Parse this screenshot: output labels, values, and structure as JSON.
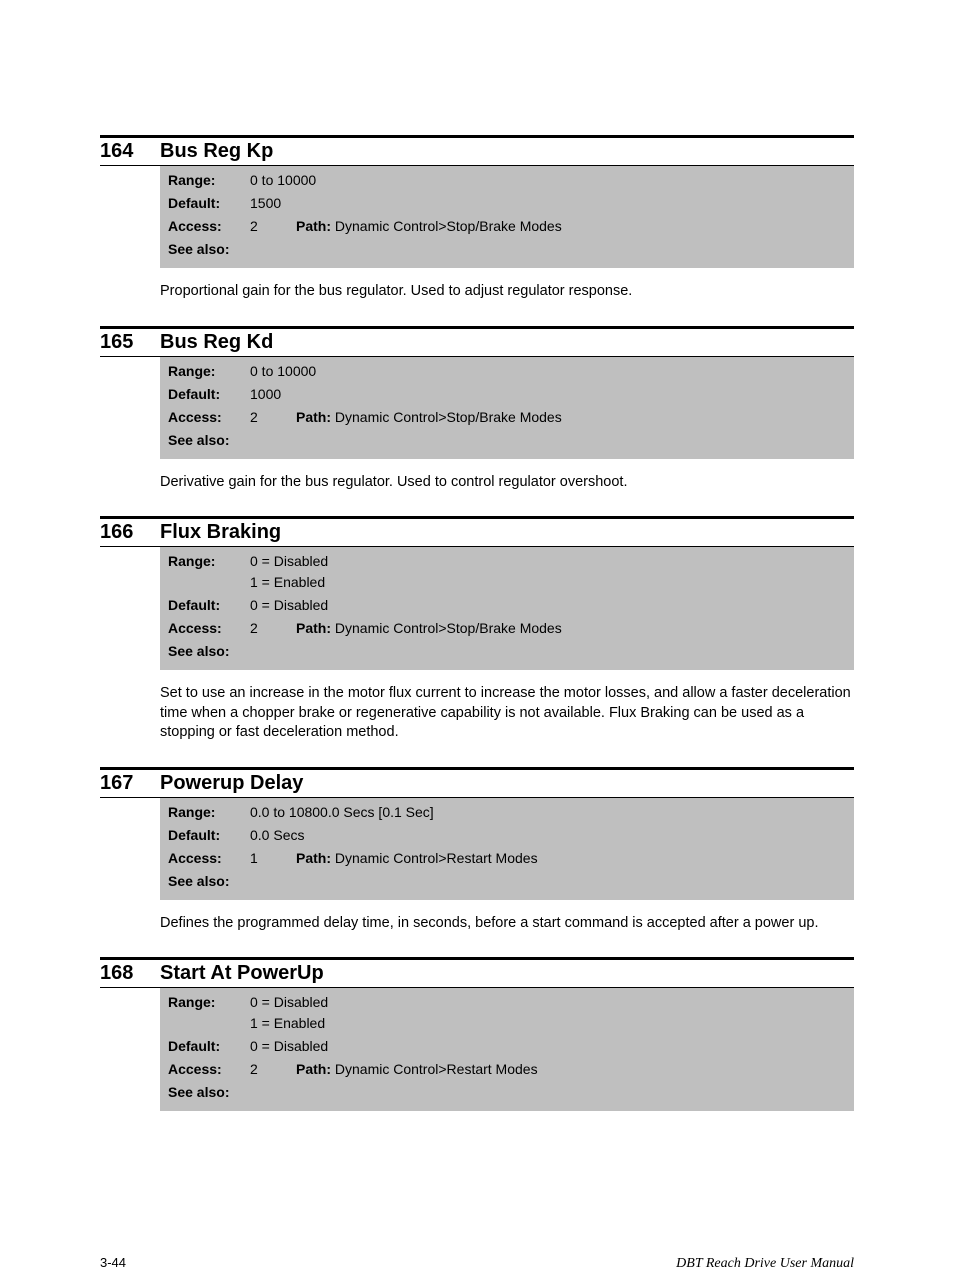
{
  "labels": {
    "range": "Range:",
    "default": "Default:",
    "access": "Access:",
    "seealso": "See also:",
    "path": "Path:"
  },
  "params": [
    {
      "num": "164",
      "title": "Bus Reg Kp",
      "range": "0 to 10000",
      "default": "1500",
      "access": "2",
      "path": "Dynamic Control>Stop/Brake Modes",
      "seealso": "",
      "desc": "Proportional gain for the bus regulator. Used to adjust regulator response."
    },
    {
      "num": "165",
      "title": "Bus Reg Kd",
      "range": "0 to 10000",
      "default": "1000",
      "access": "2",
      "path": "Dynamic Control>Stop/Brake Modes",
      "seealso": "",
      "desc": "Derivative gain for the bus regulator. Used to control regulator overshoot."
    },
    {
      "num": "166",
      "title": "Flux Braking",
      "range": "0 = Disabled\n1 = Enabled",
      "default": "0 = Disabled",
      "access": "2",
      "path": "Dynamic Control>Stop/Brake Modes",
      "seealso": "",
      "desc": "Set to use an increase in the motor flux current to increase the motor losses, and allow a faster deceleration time when a chopper brake or regenerative capability is not available. Flux Braking can be used as a stopping or fast deceleration method."
    },
    {
      "num": "167",
      "title": "Powerup Delay",
      "range": "0.0 to 10800.0 Secs   [0.1 Sec]",
      "default": "0.0 Secs",
      "access": "1",
      "path": "Dynamic Control>Restart Modes",
      "seealso": "",
      "desc": "Defines the programmed delay time, in seconds, before a start command is accepted after a power up."
    },
    {
      "num": "168",
      "title": "Start At PowerUp",
      "range": "0 = Disabled\n1 = Enabled",
      "default": "0 = Disabled",
      "access": "2",
      "path": "Dynamic Control>Restart Modes",
      "seealso": "",
      "desc": ""
    }
  ],
  "footer": {
    "page": "3-44",
    "manual": "DBT Reach Drive User Manual"
  }
}
